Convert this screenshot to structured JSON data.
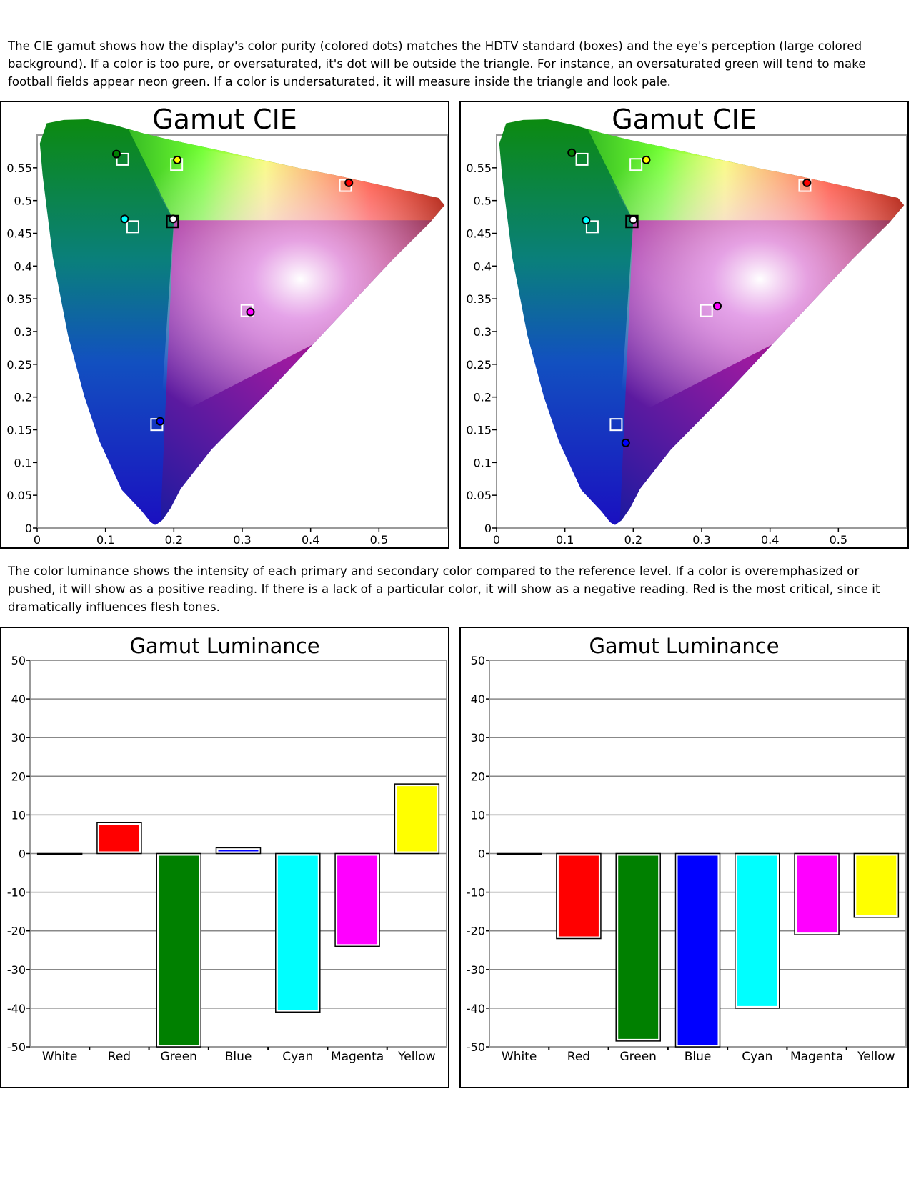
{
  "intro_text": "The CIE gamut shows how the display's color purity (colored dots) matches the HDTV standard (boxes) and the eye's perception (large colored background).  If a color is too pure, or oversaturated, it's dot will be outside the triangle.  For instance, an oversaturated green will tend to make football fields appear neon green.   If a color is undersaturated, it will measure inside the triangle and look pale.",
  "luminance_text": "The color luminance shows the intensity of each primary and secondary color compared to the reference level.  If a color is overemphasized or pushed, it will show as a positive reading.  If there is a lack of a particular color, it will show as a negative reading.  Red is the most critical, since it dramatically influences flesh tones.",
  "colors": {
    "white": "#ffffff",
    "red": "#ff0000",
    "green": "#008000",
    "blue": "#0000ff",
    "cyan": "#00ffff",
    "magenta": "#ff00ff",
    "yellow": "#ffff00",
    "grid": "#888888"
  },
  "chart_data": [
    {
      "type": "scatter",
      "title": "Gamut CIE",
      "xlim": [
        0,
        0.6
      ],
      "ylim": [
        0,
        0.6
      ],
      "x_ticks": [
        "0",
        "0.1",
        "0.2",
        "0.3",
        "0.4",
        "0.5"
      ],
      "y_ticks": [
        "0",
        "0.05",
        "0.1",
        "0.15",
        "0.2",
        "0.25",
        "0.3",
        "0.35",
        "0.4",
        "0.45",
        "0.5",
        "0.55"
      ],
      "series": [
        {
          "name": "",
          "points": [
            {
              "x": 0.451,
              "y": 0.523
            },
            {
              "x": 0.125,
              "y": 0.563
            },
            {
              "x": 0.175,
              "y": 0.158
            },
            {
              "x": 0.14,
              "y": 0.46
            },
            {
              "x": 0.307,
              "y": 0.332
            },
            {
              "x": 0.204,
              "y": 0.555
            },
            {
              "x": 0.198,
              "y": 0.468
            }
          ]
        },
        {
          "name": "",
          "points": [
            {
              "x": 0.456,
              "y": 0.527,
              "color": "red"
            },
            {
              "x": 0.116,
              "y": 0.571,
              "color": "green"
            },
            {
              "x": 0.18,
              "y": 0.163,
              "color": "blue"
            },
            {
              "x": 0.128,
              "y": 0.472,
              "color": "cyan"
            },
            {
              "x": 0.312,
              "y": 0.33,
              "color": "magenta"
            },
            {
              "x": 0.205,
              "y": 0.562,
              "color": "yellow"
            },
            {
              "x": 0.199,
              "y": 0.472,
              "color": "white"
            }
          ]
        }
      ]
    },
    {
      "type": "scatter",
      "title": "Gamut CIE",
      "xlim": [
        0,
        0.6
      ],
      "ylim": [
        0,
        0.6
      ],
      "x_ticks": [
        "0",
        "0.1",
        "0.2",
        "0.3",
        "0.4",
        "0.5"
      ],
      "y_ticks": [
        "0",
        "0.05",
        "0.1",
        "0.15",
        "0.2",
        "0.25",
        "0.3",
        "0.35",
        "0.4",
        "0.45",
        "0.5",
        "0.55"
      ],
      "series": [
        {
          "name": "",
          "points": [
            {
              "x": 0.451,
              "y": 0.523
            },
            {
              "x": 0.125,
              "y": 0.563
            },
            {
              "x": 0.175,
              "y": 0.158
            },
            {
              "x": 0.14,
              "y": 0.46
            },
            {
              "x": 0.307,
              "y": 0.332
            },
            {
              "x": 0.204,
              "y": 0.555
            },
            {
              "x": 0.198,
              "y": 0.468
            }
          ]
        },
        {
          "name": "",
          "points": [
            {
              "x": 0.454,
              "y": 0.527,
              "color": "red"
            },
            {
              "x": 0.11,
              "y": 0.573,
              "color": "green"
            },
            {
              "x": 0.189,
              "y": 0.13,
              "color": "blue"
            },
            {
              "x": 0.131,
              "y": 0.47,
              "color": "cyan"
            },
            {
              "x": 0.323,
              "y": 0.339,
              "color": "magenta"
            },
            {
              "x": 0.219,
              "y": 0.562,
              "color": "yellow"
            },
            {
              "x": 0.2,
              "y": 0.471,
              "color": "white"
            }
          ]
        }
      ]
    },
    {
      "type": "bar",
      "title": "Gamut Luminance",
      "categories": [
        "White",
        "Red",
        "Green",
        "Blue",
        "Cyan",
        "Magenta",
        "Yellow"
      ],
      "bar_colors": [
        "white",
        "red",
        "green",
        "blue",
        "cyan",
        "magenta",
        "yellow"
      ],
      "values": [
        0,
        8,
        -50,
        1.5,
        -41,
        -24,
        18
      ],
      "ylim": [
        -50,
        50
      ],
      "y_ticks": [
        "50",
        "40",
        "30",
        "20",
        "10",
        "0",
        "-10",
        "-20",
        "-30",
        "-40",
        "-50"
      ]
    },
    {
      "type": "bar",
      "title": "Gamut Luminance",
      "categories": [
        "White",
        "Red",
        "Green",
        "Blue",
        "Cyan",
        "Magenta",
        "Yellow"
      ],
      "bar_colors": [
        "white",
        "red",
        "green",
        "blue",
        "cyan",
        "magenta",
        "yellow"
      ],
      "values": [
        0,
        -22,
        -48.5,
        -50,
        -40,
        -21,
        -16.5
      ],
      "ylim": [
        -50,
        50
      ],
      "y_ticks": [
        "50",
        "40",
        "30",
        "20",
        "10",
        "0",
        "-10",
        "-20",
        "-30",
        "-40",
        "-50"
      ]
    }
  ]
}
